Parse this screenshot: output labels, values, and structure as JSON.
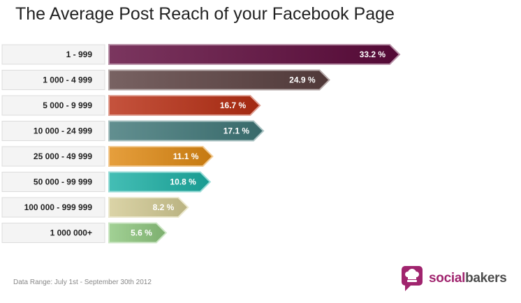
{
  "title": "The Average Post Reach of your Facebook Page",
  "footer": "Data Range: July 1st - September 30th 2012",
  "brand": {
    "part1": "social",
    "part2": "bakers"
  },
  "chart_data": {
    "type": "bar",
    "orientation": "horizontal",
    "unit": "%",
    "categories": [
      "1 - 999",
      "1 000 - 4 999",
      "5 000 - 9 999",
      "10 000 - 24 999",
      "25 000 - 49 999",
      "50 000 - 99 999",
      "100 000 - 999 999",
      "1 000 000+"
    ],
    "values": [
      33.2,
      24.9,
      16.7,
      17.1,
      11.1,
      10.8,
      8.2,
      5.6
    ],
    "value_labels": [
      "33.2 %",
      "24.9 %",
      "16.7 %",
      "17.1 %",
      "11.1 %",
      "10.8 %",
      "8.2 %",
      "5.6 %"
    ],
    "colors": [
      "#5e0a3c",
      "#5a4040",
      "#b82d12",
      "#3f7778",
      "#e08a12",
      "#1bb0a5",
      "#d3cb94",
      "#8ec77e"
    ],
    "xlim": [
      0,
      33.2
    ],
    "grid": false,
    "legend": "none"
  }
}
